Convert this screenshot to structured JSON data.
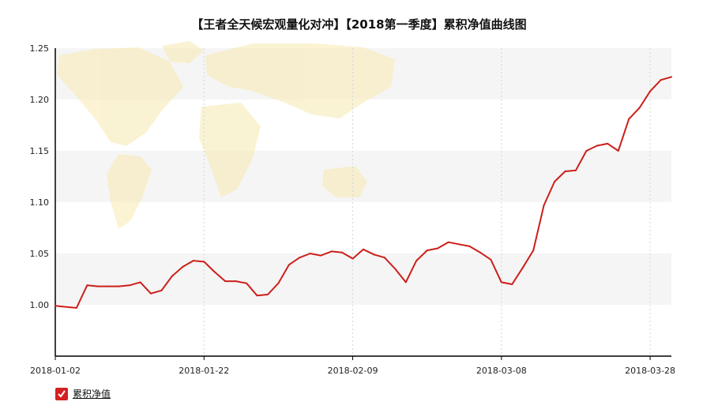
{
  "colors": {
    "line": "#cc1f1a",
    "band": "#f5f5f5",
    "grid": "#d5d5d5",
    "axis": "#000000",
    "map": "#f7eab0"
  },
  "legend": {
    "icon": "checkbox-checked-icon",
    "label": "累积净值"
  },
  "chart_data": {
    "type": "line",
    "title": "【王者全天候宏观量化对冲】【2018第一季度】累积净值曲线图",
    "xlabel": "",
    "ylabel": "",
    "ylim": [
      0.95,
      1.25
    ],
    "yticks": [
      {
        "value": 1.25,
        "label": "1.25"
      },
      {
        "value": 1.2,
        "label": "1.20"
      },
      {
        "value": 1.15,
        "label": "1.15"
      },
      {
        "value": 1.1,
        "label": "1.10"
      },
      {
        "value": 1.05,
        "label": "1.05"
      },
      {
        "value": 1.0,
        "label": "1.00"
      }
    ],
    "xticks": [
      {
        "index": 0,
        "label": "2018-01-02"
      },
      {
        "index": 14,
        "label": "2018-01-22"
      },
      {
        "index": 28,
        "label": "2018-02-09"
      },
      {
        "index": 42,
        "label": "2018-03-08"
      },
      {
        "index": 56,
        "label": "2018-03-28"
      }
    ],
    "grid": true,
    "legend_position": "bottom-left",
    "series": [
      {
        "name": "累积净值",
        "values": [
          0.999,
          0.998,
          0.997,
          1.019,
          1.018,
          1.018,
          1.018,
          1.019,
          1.022,
          1.011,
          1.014,
          1.028,
          1.037,
          1.043,
          1.042,
          1.032,
          1.023,
          1.023,
          1.021,
          1.009,
          1.01,
          1.021,
          1.039,
          1.046,
          1.05,
          1.048,
          1.052,
          1.051,
          1.045,
          1.054,
          1.049,
          1.046,
          1.035,
          1.022,
          1.043,
          1.053,
          1.055,
          1.061,
          1.059,
          1.057,
          1.051,
          1.044,
          1.022,
          1.02,
          1.036,
          1.053,
          1.097,
          1.12,
          1.13,
          1.131,
          1.15,
          1.155,
          1.157,
          1.15,
          1.181,
          1.192,
          1.208,
          1.219,
          1.222
        ]
      }
    ]
  }
}
